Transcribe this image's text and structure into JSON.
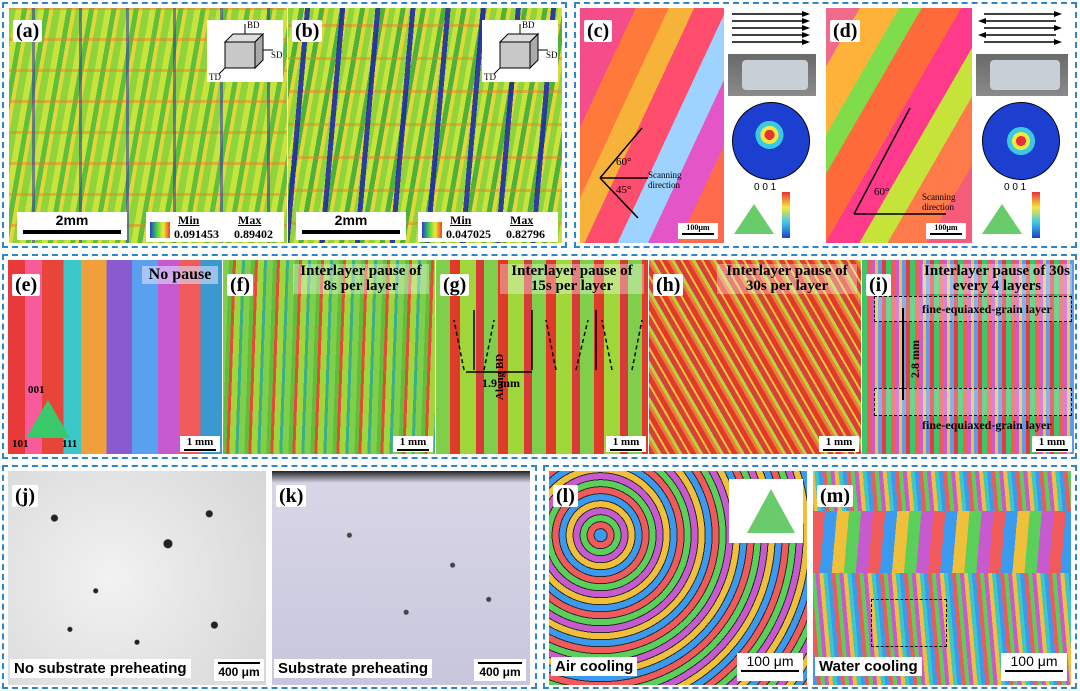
{
  "panels": {
    "a": {
      "label": "(a)",
      "scale": "2mm",
      "min_label": "Min",
      "max_label": "Max",
      "min_value": "0.091453",
      "max_value": "0.89402",
      "axes": {
        "bd": "BD",
        "td": "TD",
        "sd": "SD"
      }
    },
    "b": {
      "label": "(b)",
      "scale": "2mm",
      "min_label": "Min",
      "max_label": "Max",
      "min_value": "0.047025",
      "max_value": "0.82796",
      "axes": {
        "bd": "BD",
        "td": "TD",
        "sd": "SD"
      }
    },
    "c": {
      "label": "(c)",
      "angle1": "60°",
      "angle2": "45°",
      "scan": "Scanning direction",
      "scale": "100μm",
      "pole": "0 0 1"
    },
    "d": {
      "label": "(d)",
      "angle1": "60°",
      "scan": "Scanning direction",
      "scale": "100μm",
      "pole": "0 0 1"
    },
    "e": {
      "label": "(e)",
      "caption": "No pause",
      "scale": "1 mm",
      "ipf": {
        "top": "001",
        "left": "101",
        "right": "111"
      }
    },
    "f": {
      "label": "(f)",
      "caption": "Interlayer pause of 8s per layer",
      "scale": "1 mm"
    },
    "g": {
      "label": "(g)",
      "caption": "Interlayer pause of 15s per layer",
      "scale": "1 mm",
      "dist": "1.9 mm",
      "along": "Along BD"
    },
    "h": {
      "label": "(h)",
      "caption": "Interlayer pause of 30s per layer",
      "scale": "1 mm"
    },
    "i": {
      "label": "(i)",
      "caption": "Interlayer pause of 30s every 4 layers",
      "scale": "1 mm",
      "layer_top": "fine-equiaxed-grain layer",
      "layer_bottom": "fine-equiaxed-grain layer",
      "dist": "2.8 mm"
    },
    "j": {
      "label": "(j)",
      "caption": "No substrate preheating",
      "scale": "400 μm"
    },
    "k": {
      "label": "(k)",
      "caption": "Substrate preheating",
      "scale": "400 μm"
    },
    "l": {
      "label": "(l)",
      "caption": "Air cooling",
      "scale": "100 μm"
    },
    "m": {
      "label": "(m)",
      "caption": "Water cooling",
      "scale": "100 μm"
    }
  },
  "colors": {
    "frame": "#2e86c8"
  }
}
